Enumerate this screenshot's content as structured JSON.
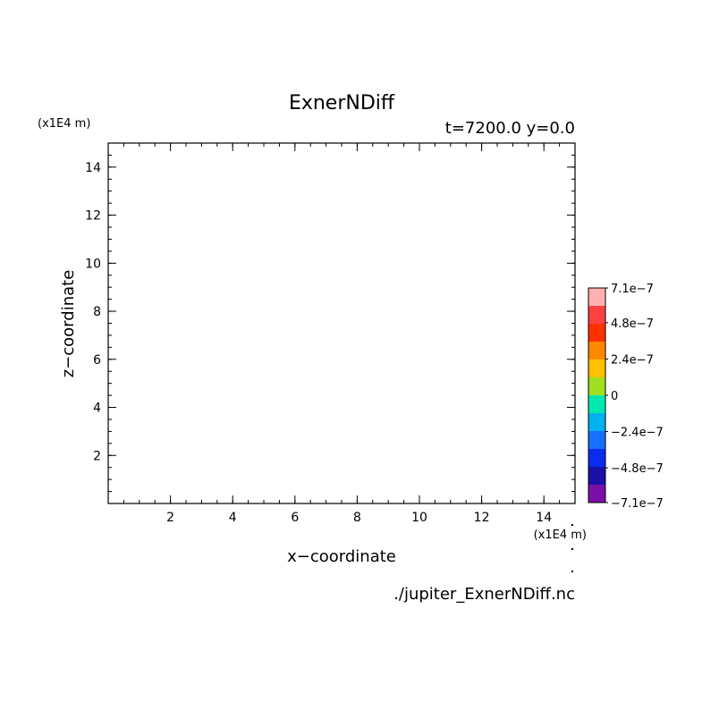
{
  "chart_data": {
    "type": "heatmap",
    "title": "ExnerNDiff",
    "subtitle": "t=7200.0 y=0.0",
    "xlabel": "x−coordinate",
    "ylabel": "z−coordinate",
    "x_unit": "(x1E4 m)",
    "y_unit": "(x1E4 m)",
    "source_file": "./jupiter_ExnerNDiff.nc",
    "xlim": [
      0,
      15
    ],
    "ylim": [
      0,
      15
    ],
    "x_ticks": [
      2,
      4,
      6,
      8,
      10,
      12,
      14
    ],
    "y_ticks": [
      2,
      4,
      6,
      8,
      10,
      12,
      14
    ],
    "x_tick_labels": [
      "2",
      "4",
      "6",
      "8",
      "10",
      "12",
      "14"
    ],
    "y_tick_labels": [
      "2",
      "4",
      "6",
      "8",
      "10",
      "12",
      "14"
    ],
    "field_values": [],
    "colorbar": {
      "min": -7.1e-07,
      "max": 7.1e-07,
      "colors": [
        "#7b0fa8",
        "#1a10a8",
        "#0a2cf0",
        "#1670ff",
        "#00b0f0",
        "#00e8b0",
        "#a0e020",
        "#ffc000",
        "#ff8800",
        "#ff3000",
        "#ff4040",
        "#ffb0b0"
      ],
      "ticks": [
        {
          "value": 7.1e-07,
          "label": "7.1e−7"
        },
        {
          "value": 4.8e-07,
          "label": "4.8e−7"
        },
        {
          "value": 2.4e-07,
          "label": "2.4e−7"
        },
        {
          "value": 0,
          "label": "0"
        },
        {
          "value": -2.4e-07,
          "label": "−2.4e−7"
        },
        {
          "value": -4.8e-07,
          "label": "−4.8e−7"
        },
        {
          "value": -7.1e-07,
          "label": "−7.1e−7"
        }
      ]
    }
  }
}
